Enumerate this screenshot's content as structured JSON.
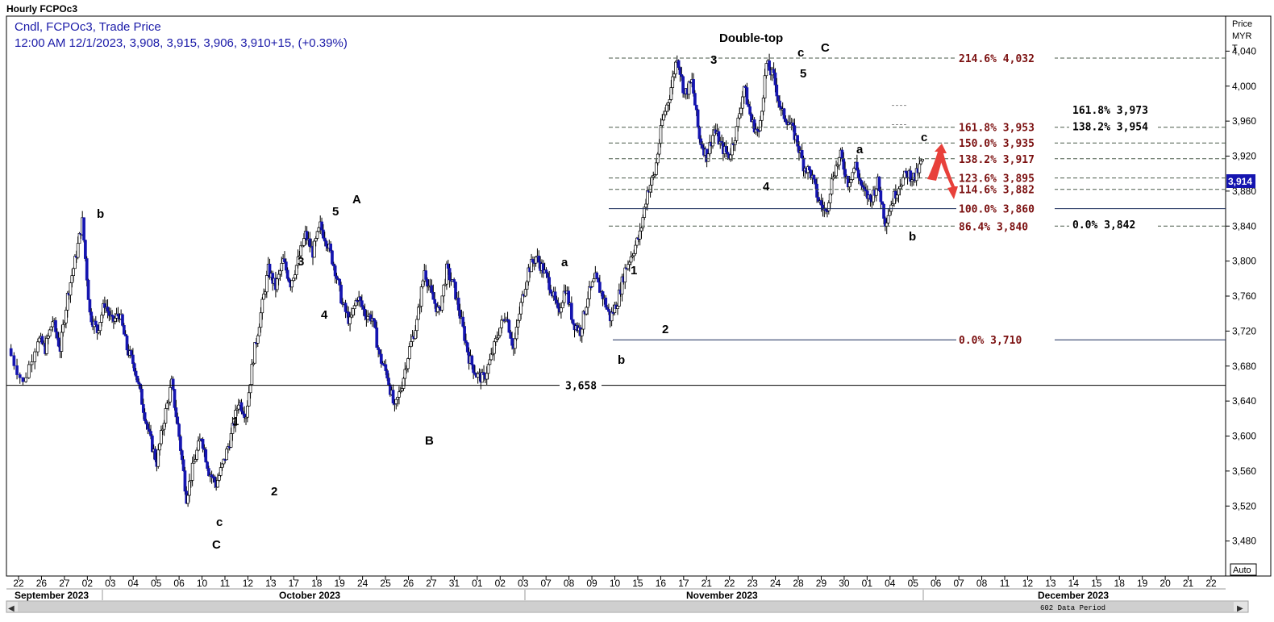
{
  "header": {
    "title": "Hourly FCPOc3",
    "line1": "Cndl, FCPOc3, Trade Price",
    "line2": "12:00 AM 12/1/2023, 3,908, 3,915, 3,906, 3,910+15, (+0.39%)"
  },
  "axis": {
    "title_lines": [
      "Price",
      "MYR",
      "T"
    ],
    "auto_label": "Auto",
    "data_period": "602 Data Period",
    "current_price_label": "3,914"
  },
  "colors": {
    "up_candle": "#ffffff",
    "down_candle": "#1515b0",
    "fib_text": "#7b1010",
    "header_text": "#1a1aa8",
    "arrow": "#e8403a"
  },
  "chart_data": {
    "type": "candlestick",
    "title": "Hourly FCPOc3",
    "ylabel": "Price MYR T",
    "ylim": [
      3440,
      4080
    ],
    "y_ticks": [
      3480,
      3520,
      3560,
      3600,
      3640,
      3680,
      3720,
      3760,
      3800,
      3840,
      3880,
      3920,
      3960,
      4000,
      4040
    ],
    "y_tick_labels": [
      "3,480",
      "3,520",
      "3,560",
      "3,600",
      "3,640",
      "3,680",
      "3,720",
      "3,760",
      "3,800",
      "3,840",
      "3,880",
      "3,920",
      "3,960",
      "4,000",
      "4,040"
    ],
    "x_day_labels": [
      "22",
      "26",
      "27",
      "02",
      "03",
      "04",
      "05",
      "06",
      "10",
      "11",
      "12",
      "13",
      "17",
      "18",
      "19",
      "24",
      "25",
      "26",
      "27",
      "31",
      "01",
      "02",
      "03",
      "07",
      "08",
      "09",
      "10",
      "15",
      "16",
      "17",
      "21",
      "22",
      "23",
      "24",
      "28",
      "29",
      "30",
      "01",
      "04",
      "05",
      "06",
      "07",
      "08",
      "11",
      "12",
      "13",
      "14",
      "15",
      "18",
      "19",
      "20",
      "21",
      "22"
    ],
    "x_months": [
      "September 2023",
      "October 2023",
      "November 2023",
      "December 2023"
    ],
    "price_path": [
      {
        "day": 0,
        "price": 3700
      },
      {
        "day": 2,
        "price": 3660
      },
      {
        "day": 4,
        "price": 3712
      },
      {
        "day": 5,
        "price": 3700
      },
      {
        "day": 6,
        "price": 3732
      },
      {
        "day": 7,
        "price": 3700
      },
      {
        "day": 8,
        "price": 3760
      },
      {
        "day": 9,
        "price": 3800
      },
      {
        "day": 10,
        "price": 3845
      },
      {
        "day": 11,
        "price": 3740
      },
      {
        "day": 12,
        "price": 3720
      },
      {
        "day": 13,
        "price": 3752
      },
      {
        "day": 14,
        "price": 3730
      },
      {
        "day": 15,
        "price": 3740
      },
      {
        "day": 16,
        "price": 3700
      },
      {
        "day": 17,
        "price": 3680
      },
      {
        "day": 18,
        "price": 3640
      },
      {
        "day": 19,
        "price": 3600
      },
      {
        "day": 20,
        "price": 3570
      },
      {
        "day": 21,
        "price": 3620
      },
      {
        "day": 22,
        "price": 3660
      },
      {
        "day": 23,
        "price": 3600
      },
      {
        "day": 24,
        "price": 3530
      },
      {
        "day": 25,
        "price": 3570
      },
      {
        "day": 26,
        "price": 3600
      },
      {
        "day": 27,
        "price": 3560
      },
      {
        "day": 28,
        "price": 3545
      },
      {
        "day": 29,
        "price": 3570
      },
      {
        "day": 30,
        "price": 3600
      },
      {
        "day": 31,
        "price": 3640
      },
      {
        "day": 32,
        "price": 3625
      },
      {
        "day": 33,
        "price": 3690
      },
      {
        "day": 34,
        "price": 3740
      },
      {
        "day": 35,
        "price": 3790
      },
      {
        "day": 36,
        "price": 3770
      },
      {
        "day": 37,
        "price": 3800
      },
      {
        "day": 38,
        "price": 3775
      },
      {
        "day": 39,
        "price": 3800
      },
      {
        "day": 40,
        "price": 3830
      },
      {
        "day": 41,
        "price": 3810
      },
      {
        "day": 42,
        "price": 3840
      },
      {
        "day": 43,
        "price": 3820
      },
      {
        "day": 44,
        "price": 3790
      },
      {
        "day": 45,
        "price": 3750
      },
      {
        "day": 46,
        "price": 3730
      },
      {
        "day": 47,
        "price": 3760
      },
      {
        "day": 48,
        "price": 3740
      },
      {
        "day": 49,
        "price": 3735
      },
      {
        "day": 50,
        "price": 3690
      },
      {
        "day": 51,
        "price": 3670
      },
      {
        "day": 52,
        "price": 3630
      },
      {
        "day": 53,
        "price": 3660
      },
      {
        "day": 54,
        "price": 3700
      },
      {
        "day": 55,
        "price": 3730
      },
      {
        "day": 56,
        "price": 3790
      },
      {
        "day": 57,
        "price": 3760
      },
      {
        "day": 58,
        "price": 3740
      },
      {
        "day": 59,
        "price": 3790
      },
      {
        "day": 60,
        "price": 3770
      },
      {
        "day": 61,
        "price": 3730
      },
      {
        "day": 62,
        "price": 3690
      },
      {
        "day": 63,
        "price": 3670
      },
      {
        "day": 64,
        "price": 3665
      },
      {
        "day": 65,
        "price": 3690
      },
      {
        "day": 66,
        "price": 3720
      },
      {
        "day": 67,
        "price": 3740
      },
      {
        "day": 68,
        "price": 3700
      },
      {
        "day": 69,
        "price": 3750
      },
      {
        "day": 70,
        "price": 3790
      },
      {
        "day": 71,
        "price": 3805
      },
      {
        "day": 72,
        "price": 3790
      },
      {
        "day": 73,
        "price": 3770
      },
      {
        "day": 74,
        "price": 3740
      },
      {
        "day": 75,
        "price": 3770
      },
      {
        "day": 76,
        "price": 3730
      },
      {
        "day": 77,
        "price": 3720
      },
      {
        "day": 78,
        "price": 3760
      },
      {
        "day": 79,
        "price": 3780
      },
      {
        "day": 80,
        "price": 3760
      },
      {
        "day": 81,
        "price": 3735
      },
      {
        "day": 82,
        "price": 3755
      },
      {
        "day": 83,
        "price": 3790
      },
      {
        "day": 84,
        "price": 3810
      },
      {
        "day": 85,
        "price": 3830
      },
      {
        "day": 86,
        "price": 3880
      },
      {
        "day": 87,
        "price": 3900
      },
      {
        "day": 88,
        "price": 3960
      },
      {
        "day": 89,
        "price": 3990
      },
      {
        "day": 90,
        "price": 4035
      },
      {
        "day": 91,
        "price": 3990
      },
      {
        "day": 92,
        "price": 4005
      },
      {
        "day": 93,
        "price": 3940
      },
      {
        "day": 94,
        "price": 3920
      },
      {
        "day": 95,
        "price": 3950
      },
      {
        "day": 96,
        "price": 3930
      },
      {
        "day": 97,
        "price": 3920
      },
      {
        "day": 98,
        "price": 3950
      },
      {
        "day": 99,
        "price": 4000
      },
      {
        "day": 100,
        "price": 3960
      },
      {
        "day": 101,
        "price": 3945
      },
      {
        "day": 102,
        "price": 4025
      },
      {
        "day": 103,
        "price": 4010
      },
      {
        "day": 104,
        "price": 3970
      },
      {
        "day": 105,
        "price": 3960
      },
      {
        "day": 106,
        "price": 3940
      },
      {
        "day": 107,
        "price": 3910
      },
      {
        "day": 108,
        "price": 3900
      },
      {
        "day": 109,
        "price": 3870
      },
      {
        "day": 110,
        "price": 3855
      },
      {
        "day": 111,
        "price": 3900
      },
      {
        "day": 112,
        "price": 3920
      },
      {
        "day": 113,
        "price": 3890
      },
      {
        "day": 114,
        "price": 3910
      },
      {
        "day": 115,
        "price": 3880
      },
      {
        "day": 116,
        "price": 3870
      },
      {
        "day": 117,
        "price": 3890
      },
      {
        "day": 118,
        "price": 3845
      },
      {
        "day": 119,
        "price": 3870
      },
      {
        "day": 120,
        "price": 3890
      },
      {
        "day": 121,
        "price": 3900
      },
      {
        "day": 122,
        "price": 3895
      },
      {
        "day": 123,
        "price": 3915
      }
    ],
    "horizontal_lines": [
      {
        "label": "3,658",
        "value": 3658
      }
    ],
    "fib_levels_red": [
      {
        "label": "214.6% 4,032",
        "value": 4032
      },
      {
        "label": "161.8% 3,953",
        "value": 3953
      },
      {
        "label": "150.0% 3,935",
        "value": 3935
      },
      {
        "label": "138.2% 3,917",
        "value": 3917
      },
      {
        "label": "123.6% 3,895",
        "value": 3895
      },
      {
        "label": "114.6% 3,882",
        "value": 3882
      },
      {
        "label": "100.0% 3,860",
        "value": 3860
      },
      {
        "label": "86.4%  3,840",
        "value": 3840
      },
      {
        "label": "0.0%  3,710",
        "value": 3710
      }
    ],
    "fib_levels_black": [
      {
        "label": "161.8% 3,973",
        "value": 3973
      },
      {
        "label": "138.2% 3,954",
        "value": 3954
      },
      {
        "label": "0.0%    3,842",
        "value": 3842
      }
    ],
    "annotations": [
      "Double-top",
      "3",
      "c",
      "C",
      "5",
      "a",
      "c",
      "4",
      "b",
      "b",
      "5",
      "A",
      "3",
      "4",
      "1",
      "2",
      "C",
      "c",
      "1",
      "2",
      "B",
      "a",
      "1",
      "2",
      "b"
    ]
  }
}
